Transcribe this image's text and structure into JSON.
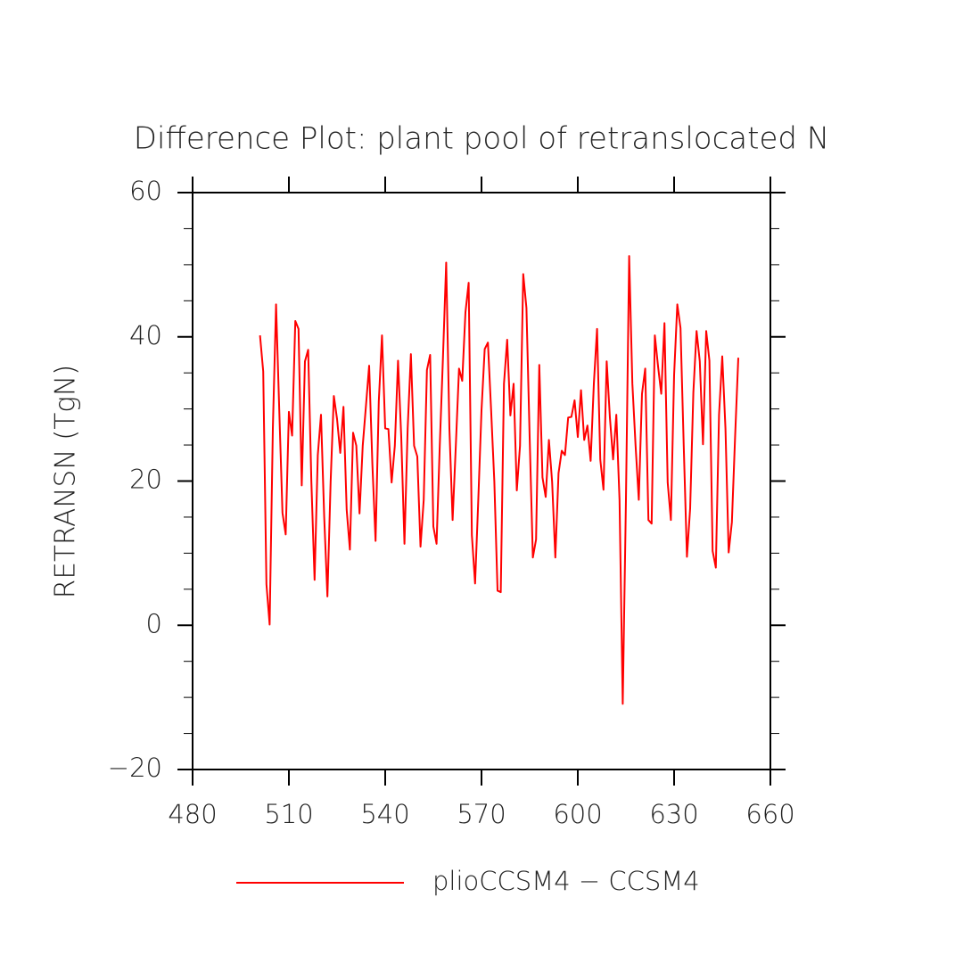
{
  "chart_data": {
    "type": "line",
    "title": "Difference Plot: plant pool of retranslocated N",
    "y_label": "RETRANSN  (TgN)",
    "x": [
      501,
      502,
      503,
      504,
      505,
      506,
      507,
      508,
      509,
      510,
      511,
      512,
      513,
      514,
      515,
      516,
      517,
      518,
      519,
      520,
      521,
      522,
      523,
      524,
      525,
      526,
      527,
      528,
      529,
      530,
      531,
      532,
      533,
      534,
      535,
      536,
      537,
      538,
      539,
      540,
      541,
      542,
      543,
      544,
      545,
      546,
      547,
      548,
      549,
      550,
      551,
      552,
      553,
      554,
      555,
      556,
      557,
      558,
      559,
      560,
      561,
      562,
      563,
      564,
      565,
      566,
      567,
      568,
      569,
      570,
      571,
      572,
      573,
      574,
      575,
      576,
      577,
      578,
      579,
      580,
      581,
      582,
      583,
      584,
      585,
      586,
      587,
      588,
      589,
      590,
      591,
      592,
      593,
      594,
      595,
      596,
      597,
      598,
      599,
      600,
      601,
      602,
      603,
      604,
      605,
      606,
      607,
      608,
      609,
      610,
      611,
      612,
      613,
      614,
      615,
      616,
      617,
      618,
      619,
      620,
      621,
      622,
      623,
      624,
      625,
      626,
      627,
      628,
      629,
      630,
      631,
      632,
      633,
      634,
      635,
      636,
      637,
      638,
      639,
      640,
      641,
      642,
      643,
      644,
      645,
      646,
      647,
      648,
      649,
      650
    ],
    "series": [
      {
        "name": "plioCCSM4 − CCSM4",
        "color": "#ff0000",
        "values": [
          40.2,
          35.2,
          5.7,
          0.1,
          27.3,
          44.5,
          29.8,
          15.6,
          12.6,
          29.6,
          26.3,
          42.2,
          41.1,
          19.4,
          36.6,
          38.2,
          19.9,
          6.3,
          23.6,
          29.2,
          15.0,
          4.0,
          19.9,
          31.8,
          28.6,
          23.9,
          30.3,
          16.0,
          10.5,
          26.7,
          24.9,
          15.5,
          24.9,
          30.4,
          36.0,
          22.4,
          11.7,
          31.0,
          40.2,
          27.3,
          27.2,
          19.8,
          24.9,
          36.7,
          26.1,
          11.3,
          27.3,
          37.6,
          24.9,
          23.4,
          10.9,
          17.4,
          35.4,
          37.5,
          13.7,
          11.3,
          24.9,
          37.2,
          50.3,
          27.3,
          14.6,
          24.9,
          35.6,
          33.9,
          43.4,
          47.5,
          12.5,
          5.8,
          17.4,
          29.8,
          38.3,
          39.2,
          29.8,
          19.9,
          4.8,
          4.6,
          33.5,
          39.6,
          29.1,
          33.5,
          18.7,
          24.9,
          48.7,
          44.0,
          26.1,
          9.4,
          11.9,
          36.1,
          20.5,
          17.8,
          25.7,
          19.9,
          9.4,
          21.1,
          24.2,
          23.6,
          28.8,
          28.9,
          31.2,
          26.1,
          32.6,
          25.7,
          27.7,
          22.8,
          33.5,
          41.1,
          23.0,
          18.8,
          36.6,
          28.8,
          23.0,
          29.2,
          17.4,
          -10.9,
          17.4,
          51.2,
          33.5,
          24.9,
          17.4,
          32.1,
          35.6,
          14.6,
          14.1,
          40.2,
          35.9,
          32.1,
          41.9,
          19.8,
          14.6,
          34.7,
          44.5,
          41.2,
          24.9,
          9.5,
          16.2,
          32.3,
          40.8,
          36.6,
          25.1,
          40.8,
          36.7,
          10.3,
          8.0,
          29.2,
          37.3,
          27.3,
          10.1,
          14.3,
          26.1,
          37.1
        ]
      }
    ],
    "xlim": [
      480,
      660
    ],
    "xticks": [
      480,
      510,
      540,
      570,
      600,
      630,
      660
    ],
    "ylim": [
      -20,
      60
    ],
    "yticks": [
      {
        "value": -20,
        "label": "−20"
      },
      0,
      20,
      40,
      60
    ],
    "y_minor_ticks": [
      -15,
      -10,
      -5,
      5,
      10,
      15,
      25,
      30,
      35,
      45,
      50,
      55
    ],
    "grid": false
  }
}
